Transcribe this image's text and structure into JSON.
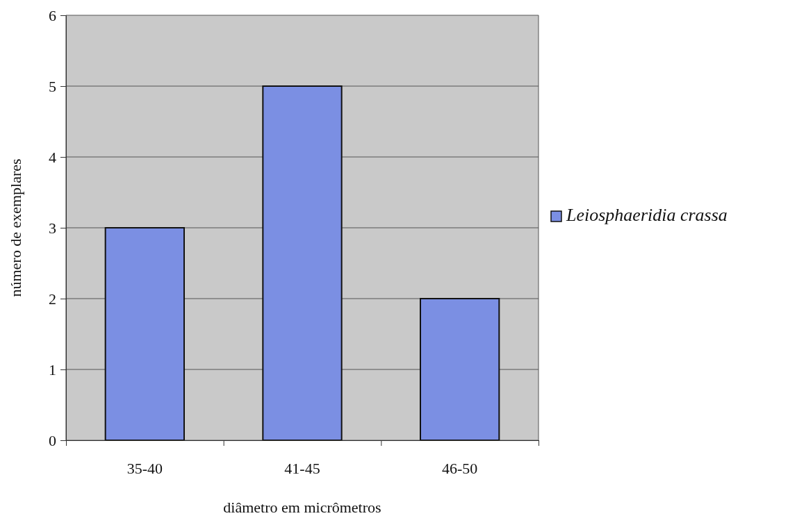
{
  "chart_data": {
    "type": "bar",
    "xlabel": "diâmetro em micrômetros",
    "ylabel": "número de exemplares",
    "categories": [
      "35-40",
      "41-45",
      "46-50"
    ],
    "series": [
      {
        "name": "Leiosphaeridia crassa",
        "color": "#7b8fe3",
        "values": [
          3,
          5,
          2
        ]
      }
    ],
    "ylim": [
      0,
      6
    ],
    "yticks": [
      0,
      1,
      2,
      3,
      4,
      5,
      6
    ],
    "grid": "y",
    "legend": "right"
  }
}
